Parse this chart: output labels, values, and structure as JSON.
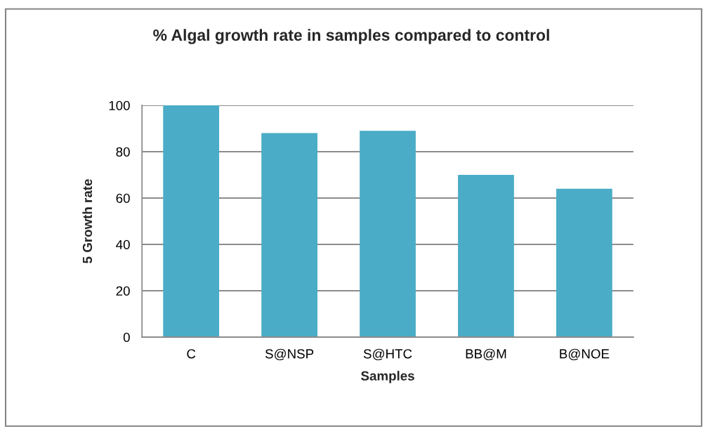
{
  "chart_data": {
    "type": "bar",
    "title": "% Algal growth rate in samples compared to control",
    "xlabel": "Samples",
    "ylabel": "5 Growth rate",
    "categories": [
      "C",
      "S@NSP",
      "S@HTC",
      "BB@M",
      "B@NOE"
    ],
    "values": [
      100,
      88,
      89,
      70,
      64
    ],
    "color": "#4aacc6",
    "ylim": [
      0,
      100
    ],
    "yticks": [
      0,
      20,
      40,
      60,
      80,
      100
    ],
    "grid": "y"
  }
}
